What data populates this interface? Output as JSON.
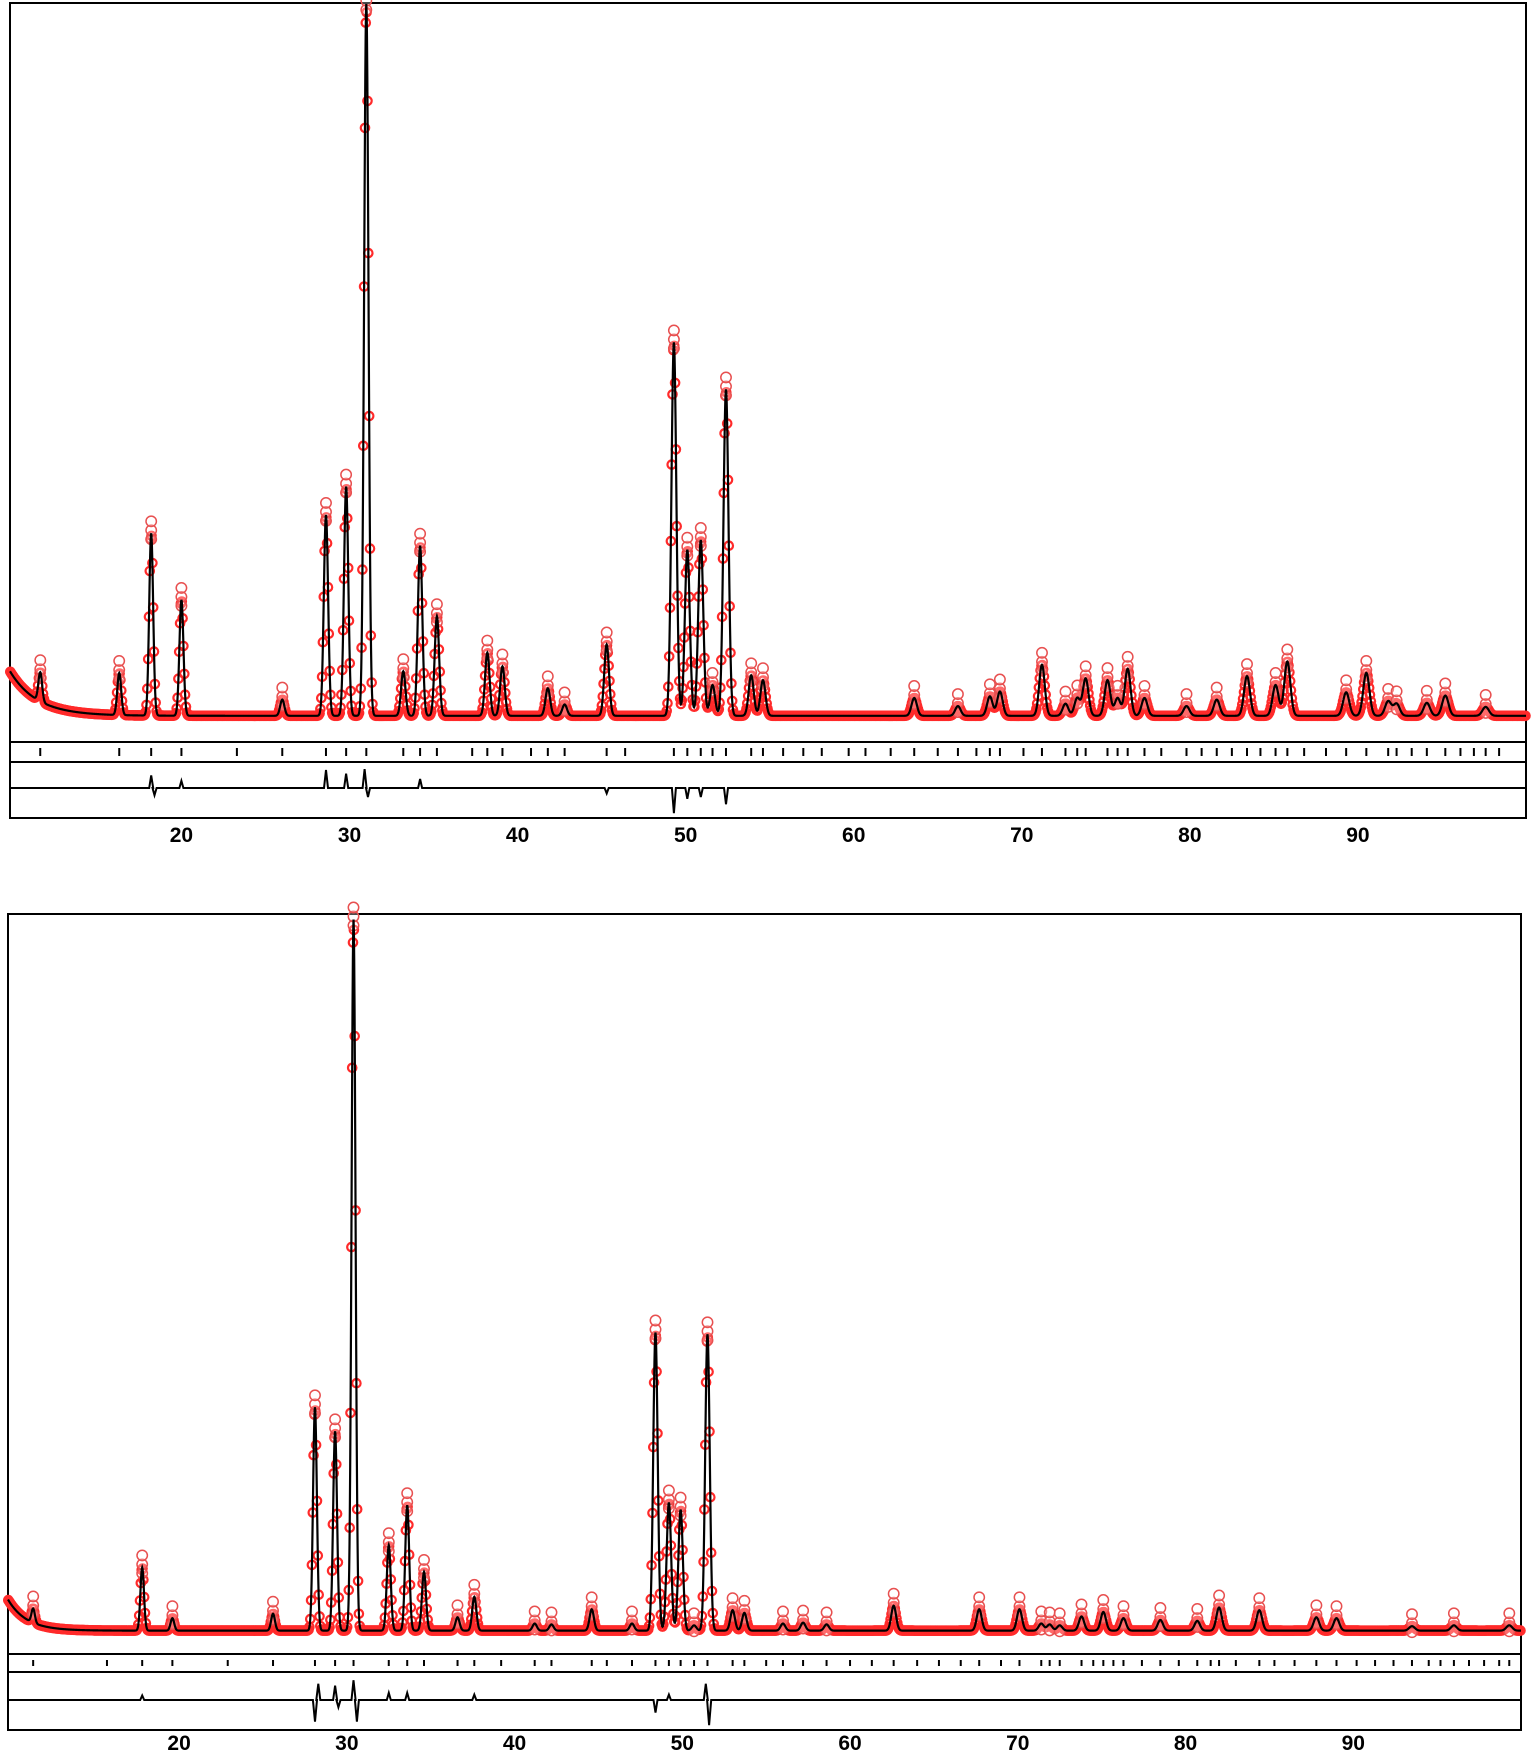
{
  "chart_data": [
    {
      "type": "line",
      "xlim": [
        9.8,
        100
      ],
      "xticks": [
        "20",
        "30",
        "40",
        "50",
        "60",
        "70",
        "80",
        "90"
      ],
      "background": 2.0,
      "decay": 5.5,
      "peaks": [
        [
          11.6,
          3.6
        ],
        [
          16.3,
          5.2
        ],
        [
          18.2,
          22.5
        ],
        [
          20.0,
          14.3
        ],
        [
          26.0,
          2.0
        ],
        [
          28.6,
          24.8
        ],
        [
          29.8,
          28.3
        ],
        [
          31.0,
          87.9
        ],
        [
          33.2,
          5.5
        ],
        [
          34.2,
          21.0
        ],
        [
          35.2,
          12.3
        ],
        [
          38.2,
          7.8
        ],
        [
          39.1,
          6.1
        ],
        [
          41.8,
          3.4
        ],
        [
          42.8,
          1.4
        ],
        [
          45.3,
          8.8
        ],
        [
          49.3,
          46.1
        ],
        [
          50.1,
          20.5
        ],
        [
          50.9,
          21.7
        ],
        [
          51.6,
          3.8
        ],
        [
          52.4,
          40.3
        ],
        [
          53.9,
          5.0
        ],
        [
          54.6,
          4.4
        ],
        [
          63.6,
          2.2
        ],
        [
          66.2,
          1.2
        ],
        [
          68.1,
          2.4
        ],
        [
          68.7,
          3.0
        ],
        [
          71.2,
          6.3
        ],
        [
          72.6,
          1.5
        ],
        [
          73.3,
          2.2
        ],
        [
          73.8,
          4.6
        ],
        [
          75.1,
          4.4
        ],
        [
          75.7,
          2.2
        ],
        [
          76.3,
          5.8
        ],
        [
          77.3,
          2.2
        ],
        [
          79.8,
          1.2
        ],
        [
          81.6,
          2.0
        ],
        [
          83.4,
          4.9
        ],
        [
          85.1,
          3.8
        ],
        [
          85.8,
          6.7
        ],
        [
          89.3,
          2.9
        ],
        [
          90.5,
          5.3
        ],
        [
          91.8,
          1.8
        ],
        [
          92.3,
          1.5
        ],
        [
          94.1,
          1.6
        ],
        [
          95.2,
          2.5
        ],
        [
          97.6,
          1.1
        ]
      ],
      "difference_spikes": [
        [
          18.2,
          1.4
        ],
        [
          18.4,
          -0.8
        ],
        [
          20.0,
          0.8
        ],
        [
          28.6,
          2.0
        ],
        [
          29.8,
          1.6
        ],
        [
          30.9,
          2.1
        ],
        [
          31.1,
          -1.0
        ],
        [
          34.2,
          1.0
        ],
        [
          45.3,
          -0.6
        ],
        [
          49.3,
          -2.8
        ],
        [
          50.1,
          -1.2
        ],
        [
          50.9,
          -1.0
        ],
        [
          52.4,
          -1.8
        ]
      ],
      "reflection_ticks": [
        11.6,
        16.3,
        18.2,
        20.0,
        23.3,
        26.0,
        28.6,
        29.8,
        31.0,
        33.2,
        34.2,
        35.2,
        37.3,
        38.2,
        39.1,
        40.8,
        41.8,
        42.8,
        45.3,
        46.4,
        49.3,
        50.1,
        50.9,
        51.6,
        52.4,
        53.9,
        54.6,
        55.8,
        57.0,
        58.1,
        59.7,
        60.7,
        62.2,
        63.6,
        65.0,
        66.2,
        67.3,
        68.1,
        68.7,
        70.1,
        71.2,
        72.6,
        73.3,
        73.8,
        75.1,
        75.7,
        76.3,
        77.3,
        78.3,
        79.8,
        80.7,
        81.6,
        82.5,
        83.4,
        84.2,
        85.1,
        85.8,
        86.8,
        88.1,
        89.3,
        90.5,
        91.8,
        92.3,
        93.2,
        94.1,
        95.2,
        96.1,
        96.9,
        97.6,
        98.4
      ]
    },
    {
      "type": "line",
      "xlim": [
        9.8,
        100
      ],
      "xticks": [
        "20",
        "30",
        "40",
        "50",
        "60",
        "70",
        "80",
        "90"
      ],
      "background": 1.5,
      "decay": 3.5,
      "peaks": [
        [
          11.3,
          1.6
        ],
        [
          17.8,
          7.1
        ],
        [
          19.6,
          1.4
        ],
        [
          25.6,
          1.9
        ],
        [
          28.1,
          25.1
        ],
        [
          29.3,
          22.4
        ],
        [
          30.4,
          79.9
        ],
        [
          32.5,
          9.6
        ],
        [
          33.6,
          14.1
        ],
        [
          34.6,
          6.6
        ],
        [
          36.6,
          1.5
        ],
        [
          37.6,
          3.8
        ],
        [
          41.2,
          0.8
        ],
        [
          42.2,
          0.7
        ],
        [
          44.6,
          2.4
        ],
        [
          47.0,
          0.8
        ],
        [
          48.4,
          33.5
        ],
        [
          49.2,
          14.4
        ],
        [
          49.9,
          13.6
        ],
        [
          50.7,
          0.6
        ],
        [
          51.5,
          33.3
        ],
        [
          53.0,
          2.3
        ],
        [
          53.7,
          2.0
        ],
        [
          56.0,
          0.8
        ],
        [
          57.2,
          0.9
        ],
        [
          58.6,
          0.7
        ],
        [
          62.6,
          2.8
        ],
        [
          67.7,
          2.4
        ],
        [
          70.1,
          2.4
        ],
        [
          71.4,
          0.8
        ],
        [
          71.9,
          0.7
        ],
        [
          72.5,
          0.6
        ],
        [
          73.8,
          1.6
        ],
        [
          75.1,
          2.1
        ],
        [
          76.3,
          1.4
        ],
        [
          78.5,
          1.2
        ],
        [
          80.7,
          1.1
        ],
        [
          82.0,
          2.6
        ],
        [
          84.4,
          2.3
        ],
        [
          87.8,
          1.5
        ],
        [
          89.0,
          1.4
        ],
        [
          93.5,
          0.5
        ],
        [
          96.0,
          0.6
        ],
        [
          99.3,
          0.6
        ]
      ],
      "difference_spikes": [
        [
          17.8,
          0.5
        ],
        [
          28.1,
          -2.4
        ],
        [
          28.3,
          1.8
        ],
        [
          29.3,
          1.6
        ],
        [
          29.5,
          -0.8
        ],
        [
          30.4,
          2.2
        ],
        [
          30.6,
          -2.4
        ],
        [
          32.5,
          0.8
        ],
        [
          33.6,
          0.8
        ],
        [
          37.6,
          0.6
        ],
        [
          48.4,
          -1.4
        ],
        [
          49.2,
          0.6
        ],
        [
          51.4,
          1.8
        ],
        [
          51.6,
          -2.8
        ]
      ],
      "reflection_ticks": [
        11.3,
        15.7,
        17.8,
        19.6,
        22.9,
        25.6,
        28.1,
        29.3,
        30.4,
        32.5,
        33.6,
        34.6,
        36.6,
        37.6,
        39.2,
        41.2,
        42.2,
        44.6,
        45.5,
        47.0,
        48.4,
        49.2,
        49.9,
        50.7,
        51.5,
        53.0,
        53.7,
        55.0,
        56.0,
        57.2,
        58.6,
        60.0,
        61.3,
        62.6,
        64.0,
        65.3,
        66.6,
        67.7,
        69.0,
        70.1,
        71.4,
        71.9,
        72.5,
        73.8,
        74.5,
        75.1,
        75.7,
        76.3,
        77.4,
        78.5,
        79.6,
        80.7,
        81.5,
        82.0,
        83.0,
        84.4,
        85.3,
        86.5,
        87.8,
        89.0,
        90.2,
        91.3,
        92.4,
        93.5,
        94.5,
        95.2,
        96.0,
        96.9,
        97.8,
        98.7,
        99.3
      ]
    }
  ]
}
